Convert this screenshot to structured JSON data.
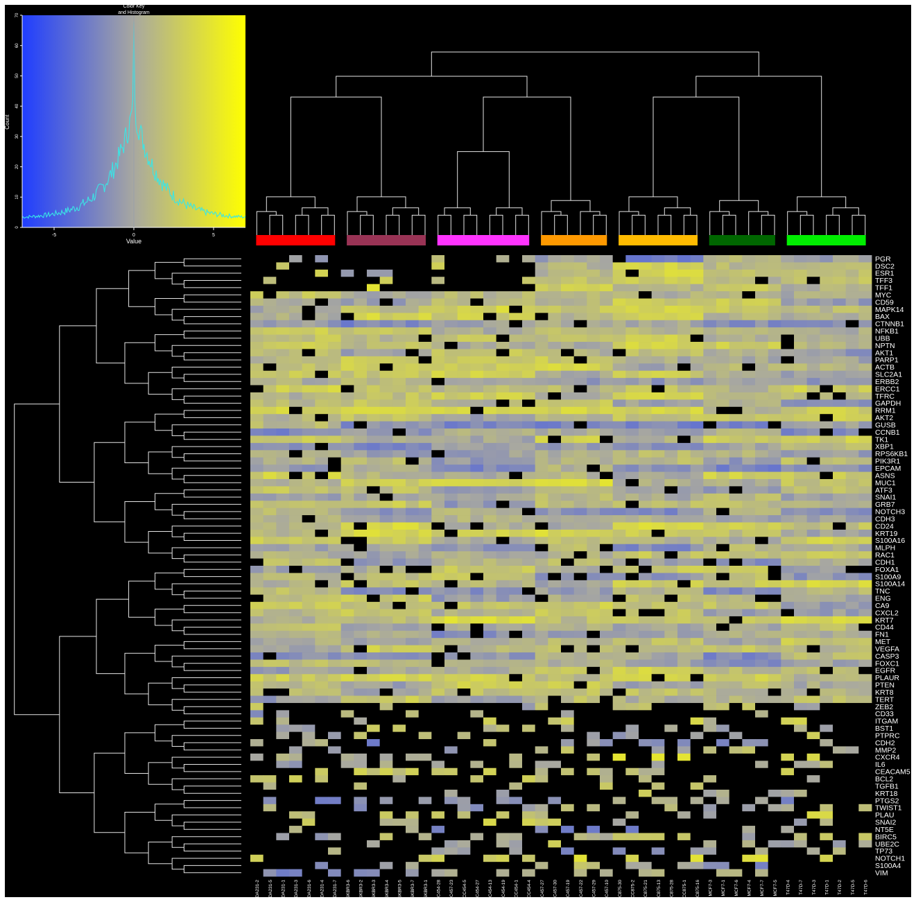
{
  "chart_data": {
    "type": "heatmap",
    "title": "",
    "color_key": {
      "title_line1": "Color Key",
      "title_line2": "and Histogram",
      "xlabel": "Value",
      "ylabel": "Count",
      "x_ticks": [
        "-5",
        "0",
        "5"
      ],
      "y_ticks": [
        "0",
        "10",
        "20",
        "30",
        "40",
        "50",
        "60",
        "70"
      ],
      "x_range": [
        -7,
        7
      ],
      "y_range": [
        0,
        70
      ],
      "low_color": "#1f3dff",
      "mid_color": "#a8a8a0",
      "high_color": "#ffff00",
      "histogram_color": "#39e6e6"
    },
    "columns": [
      "MDA231-2",
      "MDA231-5",
      "MDA231-1",
      "MDA231-3",
      "MDA231-6",
      "MDA231-4",
      "MDA231-7",
      "SKBR3-6",
      "SKBR3-2",
      "SKBR3-3",
      "SKBR3-4",
      "SKBR3-5",
      "SKBR3-7",
      "SKBR3-1",
      "CC454-28",
      "CC457-23",
      "CC454-5",
      "CC454-27",
      "CC454-13",
      "CC454-19",
      "CC454-1",
      "CC454-4",
      "CC457-27",
      "CC457-30",
      "CC457-19",
      "CC457-22",
      "CC457-29",
      "CC457-10",
      "CC875-30",
      "CC875-2",
      "CC875-21",
      "CC875-13",
      "CC875-28",
      "CC875-1",
      "CC875-16",
      "MCF7-3",
      "MCF7-1",
      "MCF7-6",
      "MCF7-4",
      "MCF7-7",
      "MCF7-5",
      "T47D-4",
      "T47D-7",
      "T47D-3",
      "T47D-1",
      "T47D-2",
      "T47D-5",
      "T47D-6"
    ],
    "column_groups": [
      {
        "color": "#ff0000",
        "start": 0,
        "end": 7
      },
      {
        "color": "#993355",
        "start": 7,
        "end": 14
      },
      {
        "color": "#ff33ff",
        "start": 14,
        "end": 22
      },
      {
        "color": "#ff9900",
        "start": 22,
        "end": 28
      },
      {
        "color": "#ffbb00",
        "start": 28,
        "end": 35
      },
      {
        "color": "#006600",
        "start": 35,
        "end": 41
      },
      {
        "color": "#00ee00",
        "start": 41,
        "end": 48
      }
    ],
    "rows": [
      "PGR",
      "DSC2",
      "ESR1",
      "TFF3",
      "TFF1",
      "MYC",
      "CD59",
      "MAPK14",
      "BAX",
      "CTNNB1",
      "NFKB1",
      "UBB",
      "NPTN",
      "AKT1",
      "PARP1",
      "ACTB",
      "SLC2A1",
      "ERBB2",
      "ERCC1",
      "TFRC",
      "GAPDH",
      "RRM1",
      "AKT2",
      "GUSB",
      "CCNB1",
      "TK1",
      "XBP1",
      "RPS6KB1",
      "PIK3R1",
      "EPCAM",
      "ASNS",
      "MUC1",
      "ATF3",
      "SNAI1",
      "GRB7",
      "NOTCH3",
      "CDH3",
      "CD24",
      "KRT19",
      "S100A16",
      "MLPH",
      "RAC1",
      "CDH1",
      "FOXA1",
      "S100A9",
      "S100A14",
      "TNC",
      "ENG",
      "CA9",
      "CXCL2",
      "KRT7",
      "CD44",
      "FN1",
      "MET",
      "VEGFA",
      "CASP3",
      "FOXC1",
      "EGFR",
      "PLAUR",
      "PTEN",
      "KRT8",
      "TERT",
      "ZEB2",
      "CD33",
      "ITGAM",
      "BST1",
      "PTPRC",
      "CDH2",
      "MMP2",
      "CXCR4",
      "IL6",
      "CEACAM5",
      "BCL2",
      "TGFB1",
      "KRT18",
      "PTGS2",
      "TWIST1",
      "PLAU",
      "SNAI2",
      "NT5E",
      "BIRC5",
      "UBE2C",
      "TP73",
      "NOTCH1",
      "S100A4",
      "VIM"
    ],
    "value_range": [
      -7,
      7
    ]
  }
}
